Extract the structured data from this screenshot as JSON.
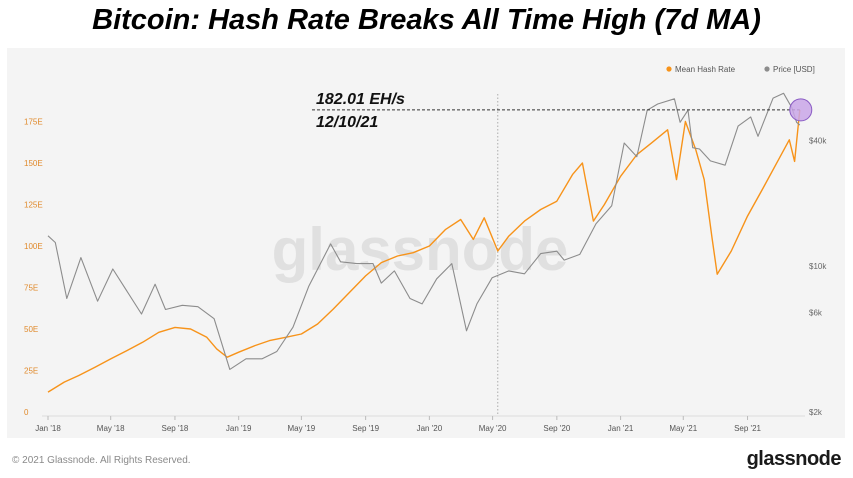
{
  "headline": "Bitcoin: Hash Rate Breaks All Time High (7d MA)",
  "footer": {
    "copyright": "© 2021 Glassnode. All Rights Reserved.",
    "logo": "glassnode",
    "watermark": "glassnode"
  },
  "colors": {
    "hash_rate": "#f7931a",
    "price": "#8c8c8c",
    "highlight": "#c9a6e8",
    "background": "#f4f4f4"
  },
  "chart_data": {
    "type": "line",
    "title": "Bitcoin: Hash Rate Breaks All Time High (7d MA)",
    "legend": {
      "placement": "top-right",
      "entries": [
        "Mean Hash Rate",
        "Price [USD]"
      ]
    },
    "x_ticks": [
      "Jan '18",
      "May '18",
      "Sep '18",
      "Jan '19",
      "May '19",
      "Sep '19",
      "Jan '20",
      "May '20",
      "Sep '20",
      "Jan '21",
      "May '21",
      "Sep '21"
    ],
    "x_range": [
      "2018-01-01",
      "2021-12-20"
    ],
    "y_left": {
      "ticks": [
        "0",
        "25E",
        "50E",
        "75E",
        "100E",
        "125E",
        "150E",
        "175E"
      ],
      "range": [
        0,
        194
      ]
    },
    "y_right": {
      "scale": "log",
      "ticks": [
        "$2k",
        "$6k",
        "$10k",
        "$40k"
      ],
      "tick_values": [
        2000,
        6000,
        10000,
        40000
      ],
      "range": [
        2000,
        70000
      ]
    },
    "annotation": {
      "value_text": "182.01 EH/s",
      "date_text": "12/10/21",
      "value": 182.01,
      "date": "2021-12-10"
    },
    "vertical_marker_date": "2020-05-11",
    "series": [
      {
        "name": "Mean Hash Rate",
        "axis": "left",
        "points": [
          [
            "2018-01-01",
            12
          ],
          [
            "2018-02-01",
            18
          ],
          [
            "2018-03-01",
            22
          ],
          [
            "2018-04-01",
            27
          ],
          [
            "2018-05-01",
            32
          ],
          [
            "2018-06-01",
            37
          ],
          [
            "2018-07-01",
            42
          ],
          [
            "2018-08-01",
            48
          ],
          [
            "2018-09-01",
            51
          ],
          [
            "2018-10-01",
            50
          ],
          [
            "2018-11-01",
            45
          ],
          [
            "2018-11-20",
            38
          ],
          [
            "2018-12-10",
            33
          ],
          [
            "2019-01-01",
            36
          ],
          [
            "2019-02-01",
            40
          ],
          [
            "2019-03-01",
            43
          ],
          [
            "2019-04-01",
            45
          ],
          [
            "2019-05-01",
            47
          ],
          [
            "2019-06-01",
            53
          ],
          [
            "2019-07-01",
            62
          ],
          [
            "2019-08-01",
            72
          ],
          [
            "2019-09-01",
            82
          ],
          [
            "2019-10-01",
            90
          ],
          [
            "2019-11-01",
            94
          ],
          [
            "2019-12-01",
            96
          ],
          [
            "2020-01-01",
            100
          ],
          [
            "2020-02-01",
            110
          ],
          [
            "2020-03-01",
            116
          ],
          [
            "2020-03-25",
            104
          ],
          [
            "2020-04-15",
            117
          ],
          [
            "2020-05-11",
            97
          ],
          [
            "2020-06-01",
            106
          ],
          [
            "2020-07-01",
            115
          ],
          [
            "2020-08-01",
            122
          ],
          [
            "2020-09-01",
            127
          ],
          [
            "2020-10-01",
            143
          ],
          [
            "2020-10-20",
            150
          ],
          [
            "2020-11-10",
            115
          ],
          [
            "2020-12-01",
            125
          ],
          [
            "2021-01-01",
            142
          ],
          [
            "2021-02-01",
            155
          ],
          [
            "2021-03-01",
            162
          ],
          [
            "2021-04-01",
            170
          ],
          [
            "2021-04-18",
            140
          ],
          [
            "2021-05-05",
            175
          ],
          [
            "2021-05-25",
            158
          ],
          [
            "2021-06-10",
            140
          ],
          [
            "2021-06-25",
            105
          ],
          [
            "2021-07-05",
            83
          ],
          [
            "2021-08-01",
            97
          ],
          [
            "2021-09-01",
            118
          ],
          [
            "2021-10-01",
            135
          ],
          [
            "2021-11-01",
            153
          ],
          [
            "2021-11-20",
            164
          ],
          [
            "2021-11-30",
            151
          ],
          [
            "2021-12-10",
            182.01
          ]
        ]
      },
      {
        "name": "Price [USD]",
        "axis": "right",
        "points": [
          [
            "2018-01-01",
            14000
          ],
          [
            "2018-01-15",
            13000
          ],
          [
            "2018-02-06",
            7000
          ],
          [
            "2018-03-05",
            11000
          ],
          [
            "2018-04-06",
            6800
          ],
          [
            "2018-05-05",
            9700
          ],
          [
            "2018-06-29",
            5900
          ],
          [
            "2018-07-25",
            8200
          ],
          [
            "2018-08-14",
            6200
          ],
          [
            "2018-09-15",
            6500
          ],
          [
            "2018-10-15",
            6400
          ],
          [
            "2018-11-15",
            5600
          ],
          [
            "2018-12-15",
            3200
          ],
          [
            "2019-01-15",
            3600
          ],
          [
            "2019-02-15",
            3600
          ],
          [
            "2019-03-15",
            3900
          ],
          [
            "2019-04-15",
            5100
          ],
          [
            "2019-05-15",
            8000
          ],
          [
            "2019-06-26",
            12800
          ],
          [
            "2019-07-15",
            10500
          ],
          [
            "2019-08-15",
            10300
          ],
          [
            "2019-09-15",
            10300
          ],
          [
            "2019-10-01",
            8300
          ],
          [
            "2019-10-26",
            9500
          ],
          [
            "2019-11-25",
            7000
          ],
          [
            "2019-12-18",
            6600
          ],
          [
            "2020-01-15",
            8700
          ],
          [
            "2020-02-13",
            10300
          ],
          [
            "2020-03-12",
            4900
          ],
          [
            "2020-04-01",
            6600
          ],
          [
            "2020-04-30",
            8800
          ],
          [
            "2020-06-01",
            9500
          ],
          [
            "2020-07-01",
            9200
          ],
          [
            "2020-08-01",
            11500
          ],
          [
            "2020-09-01",
            11800
          ],
          [
            "2020-09-15",
            10700
          ],
          [
            "2020-10-15",
            11400
          ],
          [
            "2020-11-15",
            16000
          ],
          [
            "2020-12-15",
            19500
          ],
          [
            "2021-01-08",
            39000
          ],
          [
            "2021-02-01",
            33500
          ],
          [
            "2021-02-21",
            56000
          ],
          [
            "2021-03-13",
            60000
          ],
          [
            "2021-04-14",
            63500
          ],
          [
            "2021-04-25",
            49000
          ],
          [
            "2021-05-10",
            56000
          ],
          [
            "2021-05-19",
            37000
          ],
          [
            "2021-06-01",
            36500
          ],
          [
            "2021-06-22",
            32000
          ],
          [
            "2021-07-20",
            30500
          ],
          [
            "2021-08-14",
            47000
          ],
          [
            "2021-09-07",
            52000
          ],
          [
            "2021-09-21",
            42000
          ],
          [
            "2021-10-20",
            64000
          ],
          [
            "2021-11-09",
            67500
          ],
          [
            "2021-11-25",
            57500
          ],
          [
            "2021-12-04",
            49000
          ],
          [
            "2021-12-10",
            47500
          ]
        ]
      }
    ]
  }
}
